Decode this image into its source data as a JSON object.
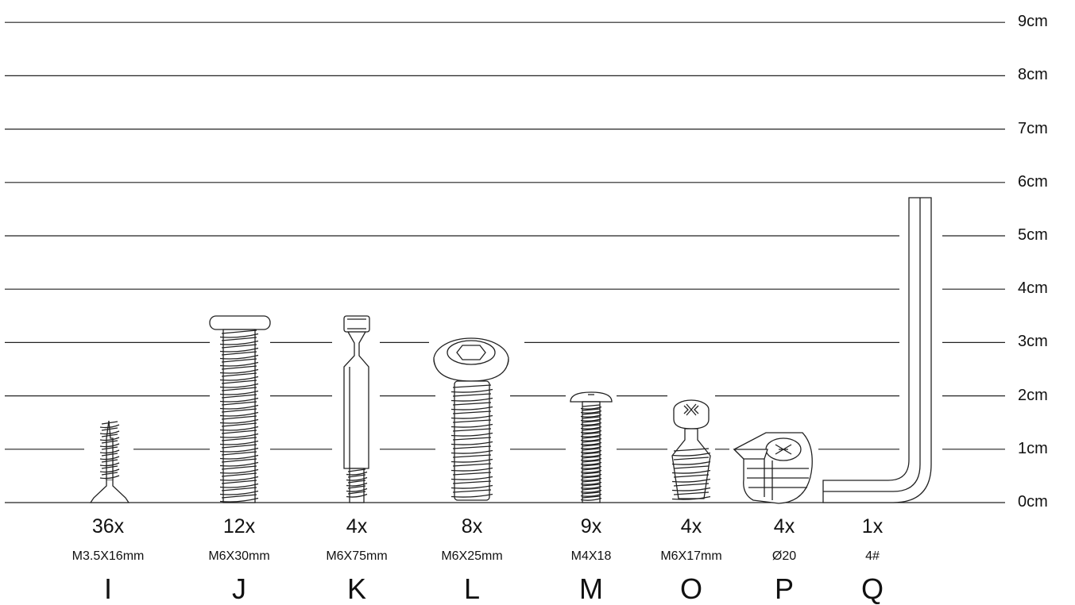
{
  "scale": {
    "units": [
      "0cm",
      "1cm",
      "2cm",
      "3cm",
      "4cm",
      "5cm",
      "6cm",
      "7cm",
      "8cm",
      "9cm"
    ]
  },
  "parts": [
    {
      "letter": "I",
      "count": "36x",
      "size": "M3.5X16mm",
      "icon": "wood-screw-icon"
    },
    {
      "letter": "J",
      "count": "12x",
      "size": "M6X30mm",
      "icon": "flat-head-bolt-icon"
    },
    {
      "letter": "K",
      "count": "4x",
      "size": "M6X75mm",
      "icon": "cam-dowel-icon"
    },
    {
      "letter": "L",
      "count": "8x",
      "size": "M6X25mm",
      "icon": "hex-button-bolt-icon"
    },
    {
      "letter": "M",
      "count": "9x",
      "size": "M4X18",
      "icon": "machine-screw-icon"
    },
    {
      "letter": "O",
      "count": "4x",
      "size": "M6X17mm",
      "icon": "cam-stud-icon"
    },
    {
      "letter": "P",
      "count": "4x",
      "size": "Ø20",
      "icon": "cam-lock-icon"
    },
    {
      "letter": "Q",
      "count": "1x",
      "size": "4#",
      "icon": "allen-key-icon"
    }
  ]
}
